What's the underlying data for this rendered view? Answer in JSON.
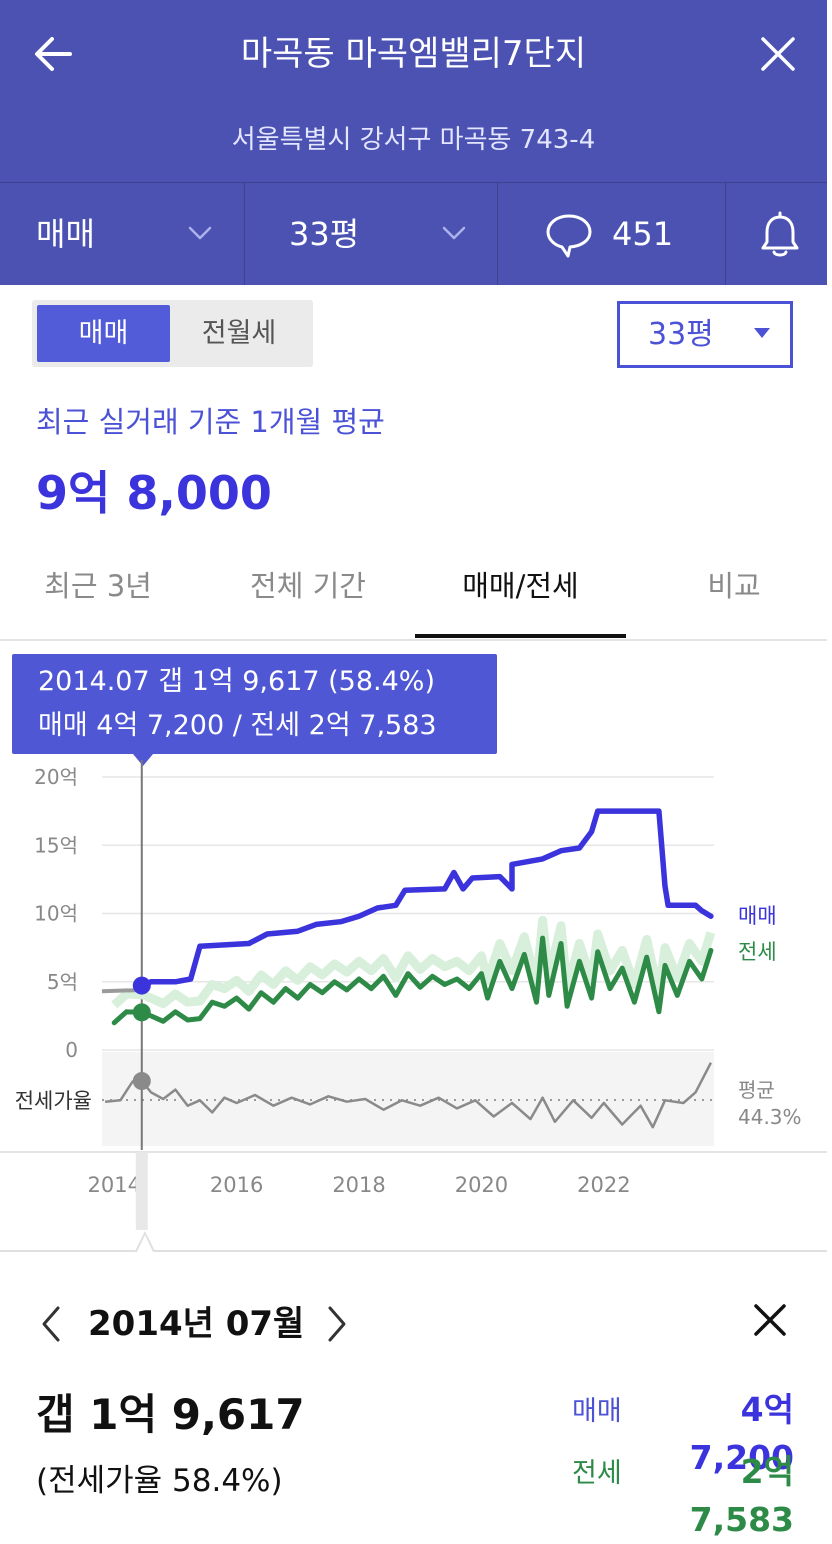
{
  "header": {
    "title": "마곡동 마곡엠밸리7단지",
    "address": "서울특별시 강서구 마곡동 743-4",
    "deal_type": "매매",
    "size": "33평",
    "comment_count": "451"
  },
  "segment": {
    "sale": "매매",
    "rent": "전월세"
  },
  "size_select": "33평",
  "summary": {
    "caption": "최근 실거래 기준 1개월 평균",
    "price": "9억 8,000"
  },
  "tabs": [
    "최근 3년",
    "전체 기간",
    "매매/전세",
    "비교"
  ],
  "tooltip": {
    "line1": "2014.07  갭 1억 9,617 (58.4%)",
    "line2": "매매 4억 7,200 / 전세 2억 7,583"
  },
  "chart_data": {
    "type": "line",
    "x_unit": "year",
    "y_unit": "억",
    "y_ticks": [
      "20억",
      "15억",
      "10억",
      "5억",
      "0"
    ],
    "x_ticks": [
      "2014",
      "2016",
      "2018",
      "2020",
      "2022"
    ],
    "ylim": [
      0,
      20
    ],
    "series": [
      {
        "name": "매매",
        "color": "#3b33dc",
        "points": [
          [
            2014.45,
            4.72
          ],
          [
            2014.6,
            5.0
          ],
          [
            2015.0,
            5.0
          ],
          [
            2015.25,
            5.2
          ],
          [
            2015.4,
            7.6
          ],
          [
            2015.8,
            7.7
          ],
          [
            2016.2,
            7.8
          ],
          [
            2016.5,
            8.5
          ],
          [
            2017.0,
            8.7
          ],
          [
            2017.3,
            9.2
          ],
          [
            2017.7,
            9.4
          ],
          [
            2018.0,
            9.8
          ],
          [
            2018.3,
            10.4
          ],
          [
            2018.6,
            10.6
          ],
          [
            2018.75,
            11.7
          ],
          [
            2019.4,
            11.8
          ],
          [
            2019.55,
            13.0
          ],
          [
            2019.7,
            11.8
          ],
          [
            2019.85,
            12.6
          ],
          [
            2020.3,
            12.7
          ],
          [
            2020.5,
            11.8
          ],
          [
            2020.5,
            13.6
          ],
          [
            2021.0,
            14.0
          ],
          [
            2021.3,
            14.6
          ],
          [
            2021.6,
            14.8
          ],
          [
            2021.8,
            16.0
          ],
          [
            2021.9,
            17.5
          ],
          [
            2022.9,
            17.5
          ],
          [
            2023.0,
            12.0
          ],
          [
            2023.05,
            10.6
          ],
          [
            2023.5,
            10.6
          ],
          [
            2023.6,
            10.2
          ],
          [
            2023.75,
            9.8
          ]
        ]
      },
      {
        "name": "전세",
        "color": "#2e8b47",
        "points": [
          [
            2014.0,
            2.0
          ],
          [
            2014.2,
            2.8
          ],
          [
            2014.45,
            2.76
          ],
          [
            2014.6,
            2.5
          ],
          [
            2014.8,
            2.1
          ],
          [
            2015.0,
            2.8
          ],
          [
            2015.2,
            2.2
          ],
          [
            2015.4,
            2.3
          ],
          [
            2015.6,
            3.5
          ],
          [
            2015.8,
            3.2
          ],
          [
            2016.0,
            3.8
          ],
          [
            2016.2,
            3.0
          ],
          [
            2016.4,
            4.2
          ],
          [
            2016.6,
            3.5
          ],
          [
            2016.8,
            4.5
          ],
          [
            2017.0,
            3.8
          ],
          [
            2017.2,
            4.8
          ],
          [
            2017.4,
            4.2
          ],
          [
            2017.6,
            5.0
          ],
          [
            2017.8,
            4.4
          ],
          [
            2018.0,
            5.2
          ],
          [
            2018.2,
            4.5
          ],
          [
            2018.4,
            5.4
          ],
          [
            2018.6,
            4.0
          ],
          [
            2018.8,
            5.6
          ],
          [
            2019.0,
            4.6
          ],
          [
            2019.2,
            5.4
          ],
          [
            2019.4,
            4.8
          ],
          [
            2019.6,
            5.2
          ],
          [
            2019.8,
            4.5
          ],
          [
            2020.0,
            5.6
          ],
          [
            2020.1,
            3.8
          ],
          [
            2020.3,
            6.5
          ],
          [
            2020.5,
            4.5
          ],
          [
            2020.7,
            7.0
          ],
          [
            2020.9,
            3.5
          ],
          [
            2021.0,
            8.2
          ],
          [
            2021.1,
            4.0
          ],
          [
            2021.3,
            7.8
          ],
          [
            2021.4,
            3.2
          ],
          [
            2021.6,
            6.5
          ],
          [
            2021.8,
            3.8
          ],
          [
            2021.9,
            7.2
          ],
          [
            2022.1,
            4.5
          ],
          [
            2022.3,
            6.0
          ],
          [
            2022.5,
            3.5
          ],
          [
            2022.7,
            6.8
          ],
          [
            2022.9,
            2.8
          ],
          [
            2023.0,
            6.2
          ],
          [
            2023.2,
            4.0
          ],
          [
            2023.4,
            6.5
          ],
          [
            2023.6,
            5.2
          ],
          [
            2023.75,
            7.3
          ]
        ]
      },
      {
        "name": "전세가율",
        "color": "#8a8a8a",
        "points": [
          [
            2013.85,
            43.0
          ],
          [
            2014.1,
            44.0
          ],
          [
            2014.3,
            58.0
          ],
          [
            2014.45,
            58.4
          ],
          [
            2014.6,
            50.0
          ],
          [
            2014.8,
            45.0
          ],
          [
            2015.0,
            52.0
          ],
          [
            2015.2,
            40.0
          ],
          [
            2015.4,
            44.0
          ],
          [
            2015.6,
            35.0
          ],
          [
            2015.8,
            46.0
          ],
          [
            2016.0,
            42.0
          ],
          [
            2016.3,
            48.0
          ],
          [
            2016.6,
            40.0
          ],
          [
            2016.9,
            46.0
          ],
          [
            2017.2,
            41.0
          ],
          [
            2017.5,
            47.0
          ],
          [
            2017.8,
            43.0
          ],
          [
            2018.1,
            45.0
          ],
          [
            2018.4,
            37.0
          ],
          [
            2018.7,
            44.0
          ],
          [
            2019.0,
            40.0
          ],
          [
            2019.3,
            46.0
          ],
          [
            2019.6,
            38.0
          ],
          [
            2019.9,
            44.0
          ],
          [
            2020.2,
            32.0
          ],
          [
            2020.5,
            42.0
          ],
          [
            2020.8,
            30.0
          ],
          [
            2021.0,
            46.0
          ],
          [
            2021.2,
            28.0
          ],
          [
            2021.5,
            44.0
          ],
          [
            2021.8,
            31.0
          ],
          [
            2022.0,
            42.0
          ],
          [
            2022.3,
            26.0
          ],
          [
            2022.6,
            40.0
          ],
          [
            2022.8,
            24.0
          ],
          [
            2023.0,
            44.0
          ],
          [
            2023.3,
            42.0
          ],
          [
            2023.5,
            50.0
          ],
          [
            2023.75,
            72.0
          ]
        ]
      }
    ],
    "series_labels": {
      "sale": "매매",
      "rent": "전세",
      "ratio": "전세가율",
      "avg": "평균",
      "avg_value": "44.3%"
    },
    "selected": {
      "x": 2014.45
    }
  },
  "detail": {
    "month": "2014년 07월",
    "gap": "갭 1억 9,617",
    "ratio": "(전세가율 58.4%)",
    "sale_label": "매매",
    "sale_value": "4억 7,200",
    "rent_label": "전세",
    "rent_value": "2억 7,583"
  },
  "colors": {
    "brand": "#4b52b2",
    "accent": "#3b33dc",
    "sale": "#3b33dc",
    "rent": "#2e8b47",
    "ratio": "#8a8a8a"
  }
}
